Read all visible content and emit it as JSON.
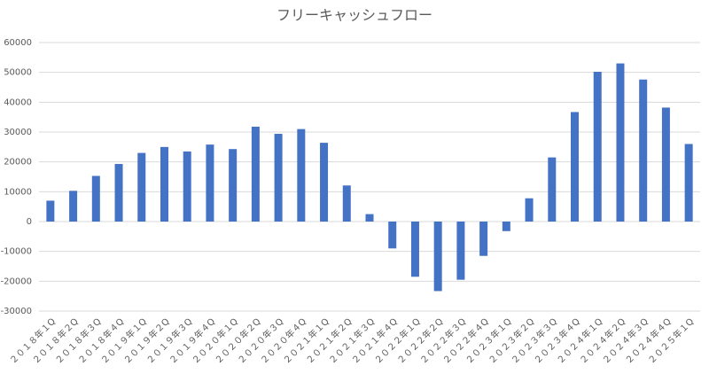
{
  "chart_data": {
    "type": "bar",
    "title": "フリーキャッシュフロー",
    "categories": [
      "２０１８年１Q",
      "２０１８年２Q",
      "２０１８年３Q",
      "２０１８年４Q",
      "２０１９年１Q",
      "２０１９年２Q",
      "２０１９年３Q",
      "２０１９年４Q",
      "２０２０年１Q",
      "２０２０年２Q",
      "２０２０年３Q",
      "２０２０年４Q",
      "２０２１年１Q",
      "２０２１年２Q",
      "２０２１年３Q",
      "２０２１年４Q",
      "２０２２年１Q",
      "２０２２年２Q",
      "２０２２年３Q",
      "２０２２年４Q",
      "２０２３年１Q",
      "２０２３年２Q",
      "２０２３年３Q",
      "２０２３年４Q",
      "２０２４年１Q",
      "２０２４年２Q",
      "２０２４年３Q",
      "２０２４年４Q",
      "２０２５年１Q"
    ],
    "values": [
      7000,
      10300,
      15300,
      19300,
      23000,
      25000,
      23500,
      25800,
      24300,
      31800,
      29400,
      31000,
      26400,
      12100,
      2500,
      -9000,
      -18500,
      -23300,
      -19500,
      -11500,
      -3200,
      7800,
      21500,
      36700,
      50200,
      53000,
      47600,
      38200,
      26000
    ],
    "color": "#4472c4",
    "ylim": [
      -30000,
      60000
    ],
    "yticks": [
      -30000,
      -20000,
      -10000,
      0,
      10000,
      20000,
      30000,
      40000,
      50000,
      60000
    ],
    "grid": true
  }
}
